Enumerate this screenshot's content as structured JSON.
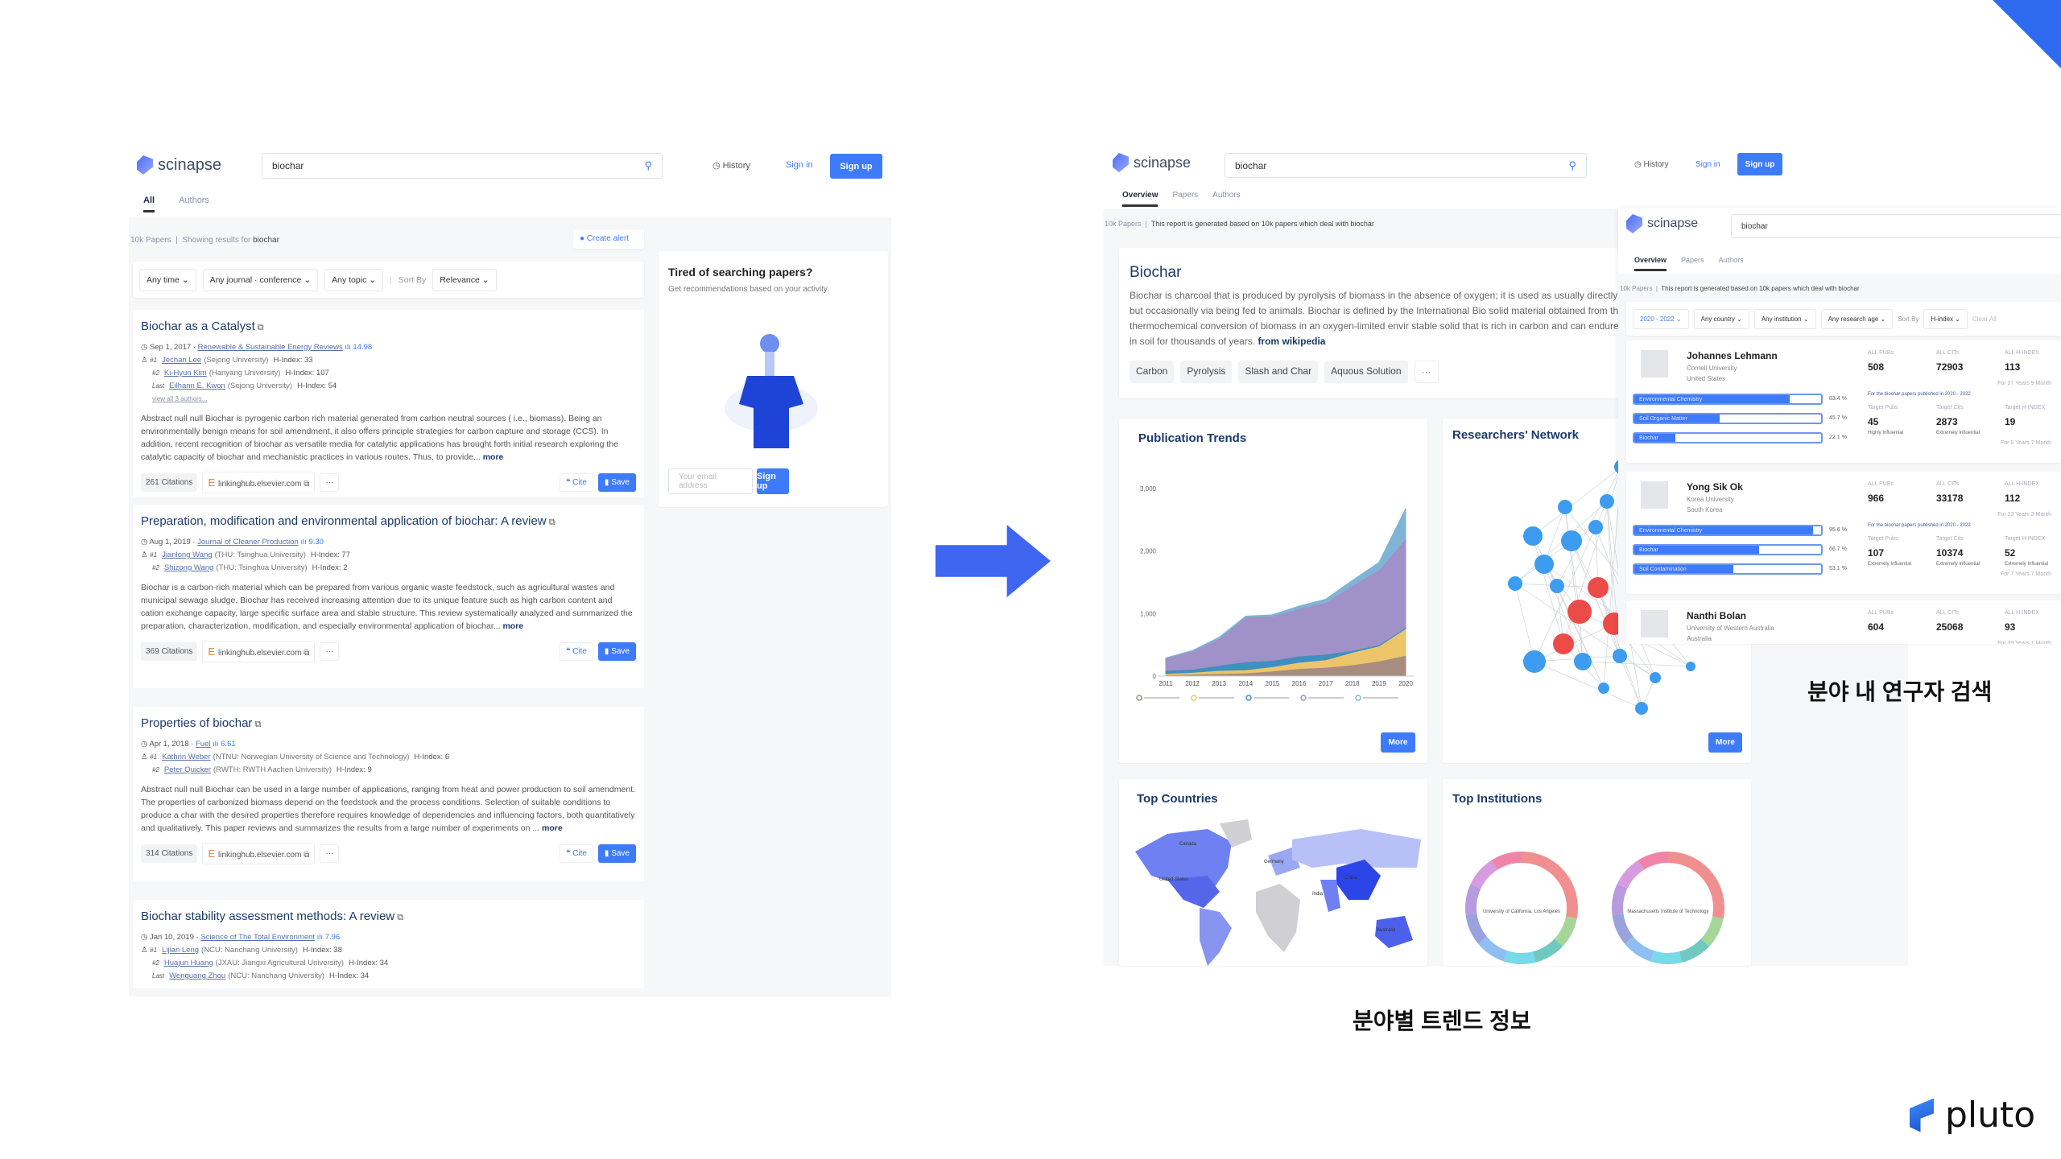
{
  "colors": {
    "accent": "#3e7bfa",
    "arrow": "#3f66f0",
    "title": "#1b3a6b"
  },
  "left": {
    "logo": "scinapse",
    "search": "biochar",
    "history": "History",
    "signin": "Sign in",
    "signup": "Sign up",
    "tabs": [
      "All",
      "Authors"
    ],
    "meta": {
      "count": "10k Papers",
      "showing": "Showing results for",
      "query": "biochar"
    },
    "create_alert": "Create alert",
    "filters": [
      "Any time",
      "Any journal · conference",
      "Any topic"
    ],
    "sort_label": "Sort By",
    "sort_value": "Relevance",
    "results": [
      {
        "title": "Biochar as a Catalyst",
        "date": "Sep 1, 2017",
        "journal": "Renewable & Sustainable Energy Reviews",
        "impact": "14.98",
        "authors": [
          {
            "rank": "#1",
            "name": "Jechan Lee",
            "aff": "(Sejong University)",
            "h": "H-Index: 33"
          },
          {
            "rank": "#2",
            "name": "Ki-Hyun Kim",
            "aff": "(Hanyang University)",
            "h": "H-Index: 107"
          },
          {
            "rank": "Last",
            "name": "Eilhann E. Kwon",
            "aff": "(Sejong University)",
            "h": "H-Index: 54"
          }
        ],
        "view_all": "view all 3 authors...",
        "abstract": "Abstract null null Biochar is pyrogenic carbon rich material generated from carbon neutral sources ( i.e., biomass). Being an environmentally benign means for soil amendment, it also offers principle strategies for carbon capture and storage (CCS). In addition, recent recognition of biochar as versatile media for catalytic applications has brought forth initial research exploring the catalytic capacity of biochar and mechanistic practices in various routes. Thus, to provide...",
        "citations": "261 Citations",
        "source": "linkinghub.elsevier.com"
      },
      {
        "title": "Preparation, modification and environmental application of biochar: A review",
        "date": "Aug 1, 2019",
        "journal": "Journal of Cleaner Production",
        "impact": "9.30",
        "authors": [
          {
            "rank": "#1",
            "name": "Jianlong Wang",
            "aff": "(THU: Tsinghua University)",
            "h": "H-Index: 77"
          },
          {
            "rank": "#2",
            "name": "Shizong Wang",
            "aff": "(THU: Tsinghua University)",
            "h": "H-Index: 2"
          }
        ],
        "abstract": "Biochar is a carbon-rich material which can be prepared from various organic waste feedstock, such as agricultural wastes and municipal sewage sludge. Biochar has received increasing attention due to its unique feature such as high carbon content and cation exchange capacity, large specific surface area and stable structure. This review systematically analyzed and summarized the preparation, characterization, modification, and especially environmental application of biochar...",
        "citations": "369 Citations",
        "source": "linkinghub.elsevier.com"
      },
      {
        "title": "Properties of biochar",
        "date": "Apr 1, 2018",
        "journal": "Fuel",
        "impact": "6.61",
        "authors": [
          {
            "rank": "#1",
            "name": "Kathrin Weber",
            "aff": "(NTNU: Norwegian University of Science and Technology)",
            "h": "H-Index: 6"
          },
          {
            "rank": "#2",
            "name": "Peter Quicker",
            "aff": "(RWTH: RWTH Aachen University)",
            "h": "H-Index: 9"
          }
        ],
        "abstract": "Abstract null null Biochar can be used in a large number of applications, ranging from heat and power production to soil amendment. The properties of carbonized biomass depend on the feedstock and the process conditions. Selection of suitable conditions to produce a char with the desired properties therefore requires knowledge of dependencies and influencing factors, both quantitatively and qualitatively. This paper reviews and summarizes the results from a large number of experiments on ...",
        "citations": "314 Citations",
        "source": "linkinghub.elsevier.com"
      },
      {
        "title": "Biochar stability assessment methods: A review",
        "date": "Jan 10, 2019",
        "journal": "Science of The Total Environment",
        "impact": "7.96",
        "authors": [
          {
            "rank": "#1",
            "name": "Lijian Leng",
            "aff": "(NCU: Nanchang University)",
            "h": "H-Index: 38"
          },
          {
            "rank": "#2",
            "name": "Huajun Huang",
            "aff": "(JXAU: Jiangxi Agricultural University)",
            "h": "H-Index: 34"
          },
          {
            "rank": "Last",
            "name": "Wenguang Zhou",
            "aff": "(NCU: Nanchang University)",
            "h": "H-Index: 34"
          }
        ]
      }
    ],
    "more": "more",
    "cite": "Cite",
    "save": "Save",
    "promo": {
      "title": "Tired of searching papers?",
      "text": "Get recommendations based on your activity.",
      "email_placeholder": "Your email address",
      "signup": "Sign up"
    }
  },
  "right": {
    "logo": "scinapse",
    "search": "biochar",
    "history": "History",
    "signin": "Sign in",
    "signup": "Sign up",
    "tabs": [
      "Overview",
      "Papers",
      "Authors"
    ],
    "meta": {
      "count": "10k Papers",
      "text": "This report is generated based on 10k papers which deal with biochar"
    },
    "topic": {
      "title": "Biochar",
      "text": "Biochar is charcoal that is produced by pyrolysis of biomass in the absence of oxygen; it is used as usually directly but occasionally via being fed to animals. Biochar is defined by the International Bio solid material obtained from the thermochemical conversion of biomass in an oxygen-limited envir stable solid that is rich in carbon and can endure in soil for thousands of years.",
      "source": "from wikipedia",
      "chips": [
        "Carbon",
        "Pyrolysis",
        "Slash and Char",
        "Aquous Solution"
      ],
      "chips_more": "···"
    },
    "pub_title": "Publication Trends",
    "net_title": "Researchers' Network",
    "countries_title": "Top Countries",
    "inst_title": "Top Institutions",
    "more": "More",
    "countries": [
      "Canada",
      "United States",
      "Germany",
      "China",
      "India",
      "Australia"
    ],
    "institutions": [
      "University of California, Los Angeles",
      "Massachusetts Institute of Technology"
    ],
    "network_colors": {
      "node": "#3d9cf0",
      "highlight": "#ec4b48"
    }
  },
  "chart_data": {
    "type": "area",
    "stacked": true,
    "title": "Publication Trends",
    "x": [
      2011,
      2012,
      2013,
      2014,
      2015,
      2016,
      2017,
      2018,
      2019,
      2020
    ],
    "ylim": [
      0,
      3000
    ],
    "yticks": [
      0,
      1000,
      2000,
      3000
    ],
    "grid": false,
    "legend": "bottom",
    "series": [
      {
        "color": "#a88c80",
        "values": [
          20,
          30,
          40,
          50,
          80,
          120,
          140,
          180,
          240,
          330
        ]
      },
      {
        "color": "#ecc56a",
        "values": [
          20,
          30,
          50,
          50,
          70,
          100,
          120,
          200,
          240,
          430
        ]
      },
      {
        "color": "#3f8fbf",
        "values": [
          50,
          50,
          80,
          130,
          100,
          100,
          90,
          30,
          20,
          20
        ]
      },
      {
        "color": "#a092c8",
        "values": [
          200,
          290,
          430,
          720,
          710,
          760,
          830,
          1040,
          1200,
          1420
        ]
      },
      {
        "color": "#7fb4d6",
        "values": [
          0,
          10,
          20,
          10,
          20,
          40,
          50,
          80,
          120,
          480
        ]
      }
    ]
  },
  "authors_panel": {
    "logo": "scinapse",
    "search": "biochar",
    "tabs": [
      "Overview",
      "Papers",
      "Authors"
    ],
    "meta": {
      "count": "10k Papers",
      "text": "This report is generated based on 10k papers which deal with biochar"
    },
    "filters": [
      "2020 - 2022",
      "Any country",
      "Any institution",
      "Any research age"
    ],
    "sort_label": "Sort By",
    "sort_value": "H-index",
    "clear": "Clear All",
    "labels": {
      "pubs": "ALL PUBs",
      "cits": "ALL CITs",
      "h": "ALL H-INDEX",
      "tpubs": "Target Pubs",
      "tcits": "Target Cits",
      "th": "Target H-INDEX",
      "note": "For the biochar papers published in 2020 - 2022"
    },
    "authors": [
      {
        "name": "Johannes Lehmann",
        "inst": "Cornell University",
        "country": "United States",
        "pubs": "508",
        "cits": "72903",
        "h": "113",
        "career": "For 27 Years 9 Month",
        "topics": [
          {
            "name": "Environmental Chemistry",
            "pct": 83.4
          },
          {
            "name": "Soil Organic Matter",
            "pct": 45.7
          },
          {
            "name": "Biochar",
            "pct": 22.1
          }
        ],
        "tpubs": "45",
        "tcits": "2873",
        "th": "19",
        "tpubs_tag": "Highly Influential",
        "tcits_tag": "Extremely Influential",
        "th_tag": "",
        "tcareer": "For 5 Years 7 Month"
      },
      {
        "name": "Yong Sik Ok",
        "inst": "Korea University",
        "country": "South Korea",
        "pubs": "966",
        "cits": "33178",
        "h": "112",
        "career": "For 23 Years 3 Month",
        "topics": [
          {
            "name": "Environmental Chemistry",
            "pct": 95.6
          },
          {
            "name": "Biochar",
            "pct": 66.7
          },
          {
            "name": "Soil Contamination",
            "pct": 53.1
          }
        ],
        "tpubs": "107",
        "tcits": "10374",
        "th": "52",
        "tpubs_tag": "Extremely Influential",
        "tcits_tag": "Extremely Influential",
        "th_tag": "Extremely Influential",
        "tcareer": "For 7 Years 7 Month"
      },
      {
        "name": "Nanthi Bolan",
        "inst": "University of Western Australia",
        "country": "Australia",
        "pubs": "604",
        "cits": "25068",
        "h": "93",
        "career": "For 39 Years 1 Month"
      }
    ]
  },
  "captions": {
    "trend": "분야별 트렌드 정보",
    "researcher": "분야 내 연구자 검색"
  },
  "brand": "pluto"
}
